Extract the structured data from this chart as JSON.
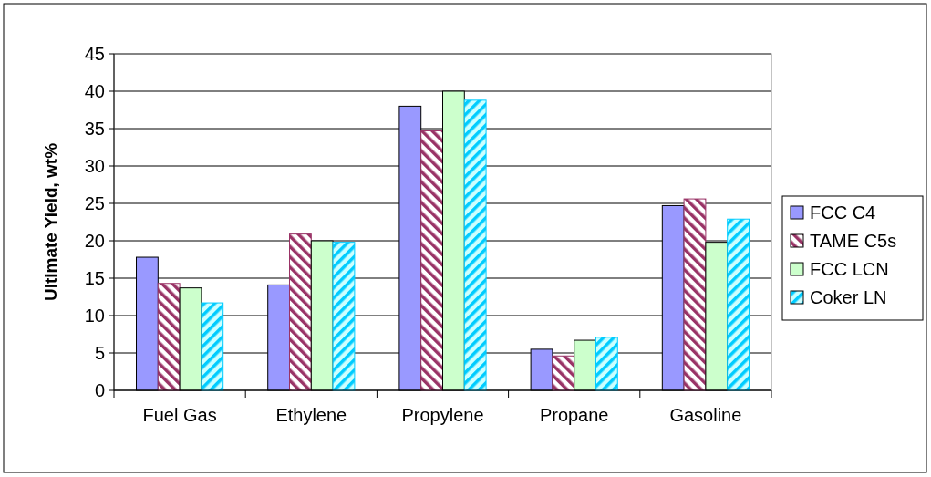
{
  "chart_data": {
    "type": "bar",
    "ylabel": "Ultimate Yield, wt%",
    "categories": [
      "Fuel Gas",
      "Ethylene",
      "Propylene",
      "Propane",
      "Gasoline"
    ],
    "series": [
      {
        "name": "FCC C4",
        "color": "#9999ff",
        "values": [
          17.8,
          14.1,
          38.0,
          5.5,
          24.7
        ]
      },
      {
        "name": "TAME C5s",
        "color": "#993366",
        "values": [
          14.3,
          20.9,
          34.7,
          4.6,
          25.6
        ]
      },
      {
        "name": "FCC LCN",
        "color": "#ccffcc",
        "values": [
          13.7,
          20.0,
          40.0,
          6.7,
          19.8
        ]
      },
      {
        "name": "Coker LN",
        "color": "#00ccff",
        "values": [
          11.7,
          19.8,
          38.8,
          7.1,
          22.9
        ]
      }
    ],
    "ylim": [
      0,
      45
    ],
    "yticks": [
      0,
      5,
      10,
      15,
      20,
      25,
      30,
      35,
      40,
      45
    ],
    "grid": "y",
    "legend": "right"
  }
}
